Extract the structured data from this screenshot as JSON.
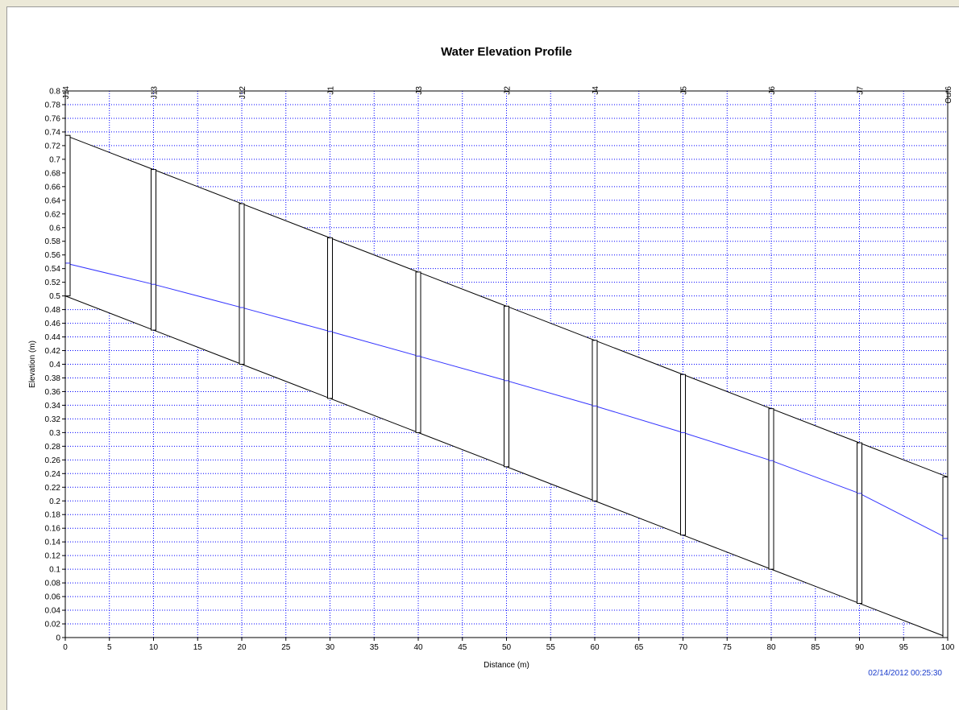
{
  "chart_data": {
    "type": "line",
    "title": "Water Elevation Profile",
    "xlabel": "Distance (m)",
    "ylabel": "Elevation (m)",
    "xlim": [
      0,
      100
    ],
    "ylim": [
      0,
      0.8
    ],
    "x_ticks": [
      0,
      5,
      10,
      15,
      20,
      25,
      30,
      35,
      40,
      45,
      50,
      55,
      60,
      65,
      70,
      75,
      80,
      85,
      90,
      95,
      100
    ],
    "y_ticks": [
      0,
      0.02,
      0.04,
      0.06,
      0.08,
      0.1,
      0.12,
      0.14,
      0.16,
      0.18,
      0.2,
      0.22,
      0.24,
      0.26,
      0.28,
      0.3,
      0.32,
      0.34,
      0.36,
      0.38,
      0.4,
      0.42,
      0.44,
      0.46,
      0.48,
      0.5,
      0.52,
      0.54,
      0.56,
      0.58,
      0.6,
      0.62,
      0.64,
      0.66,
      0.68,
      0.7,
      0.72,
      0.74,
      0.76,
      0.78,
      0.8
    ],
    "grid": true,
    "grid_color": "#0000ff",
    "water_color": "#3333ff",
    "nodes": [
      {
        "name": "J14",
        "x": 0,
        "invert": 0.5,
        "top": 0.735,
        "water": 0.548
      },
      {
        "name": "J13",
        "x": 10,
        "invert": 0.45,
        "top": 0.685,
        "water": 0.517
      },
      {
        "name": "J12",
        "x": 20,
        "invert": 0.4,
        "top": 0.635,
        "water": 0.483
      },
      {
        "name": "J1",
        "x": 30,
        "invert": 0.35,
        "top": 0.585,
        "water": 0.448
      },
      {
        "name": "J3",
        "x": 40,
        "invert": 0.3,
        "top": 0.535,
        "water": 0.412
      },
      {
        "name": "J2",
        "x": 50,
        "invert": 0.25,
        "top": 0.485,
        "water": 0.376
      },
      {
        "name": "J4",
        "x": 60,
        "invert": 0.2,
        "top": 0.435,
        "water": 0.339
      },
      {
        "name": "J5",
        "x": 70,
        "invert": 0.15,
        "top": 0.385,
        "water": 0.3
      },
      {
        "name": "J6",
        "x": 80,
        "invert": 0.1,
        "top": 0.335,
        "water": 0.259
      },
      {
        "name": "J7",
        "x": 90,
        "invert": 0.05,
        "top": 0.285,
        "water": 0.211
      },
      {
        "name": "Out6",
        "x": 100,
        "invert": 0.0,
        "top": 0.235,
        "water": 0.145
      }
    ],
    "timestamp": "02/14/2012 00:25:30"
  }
}
